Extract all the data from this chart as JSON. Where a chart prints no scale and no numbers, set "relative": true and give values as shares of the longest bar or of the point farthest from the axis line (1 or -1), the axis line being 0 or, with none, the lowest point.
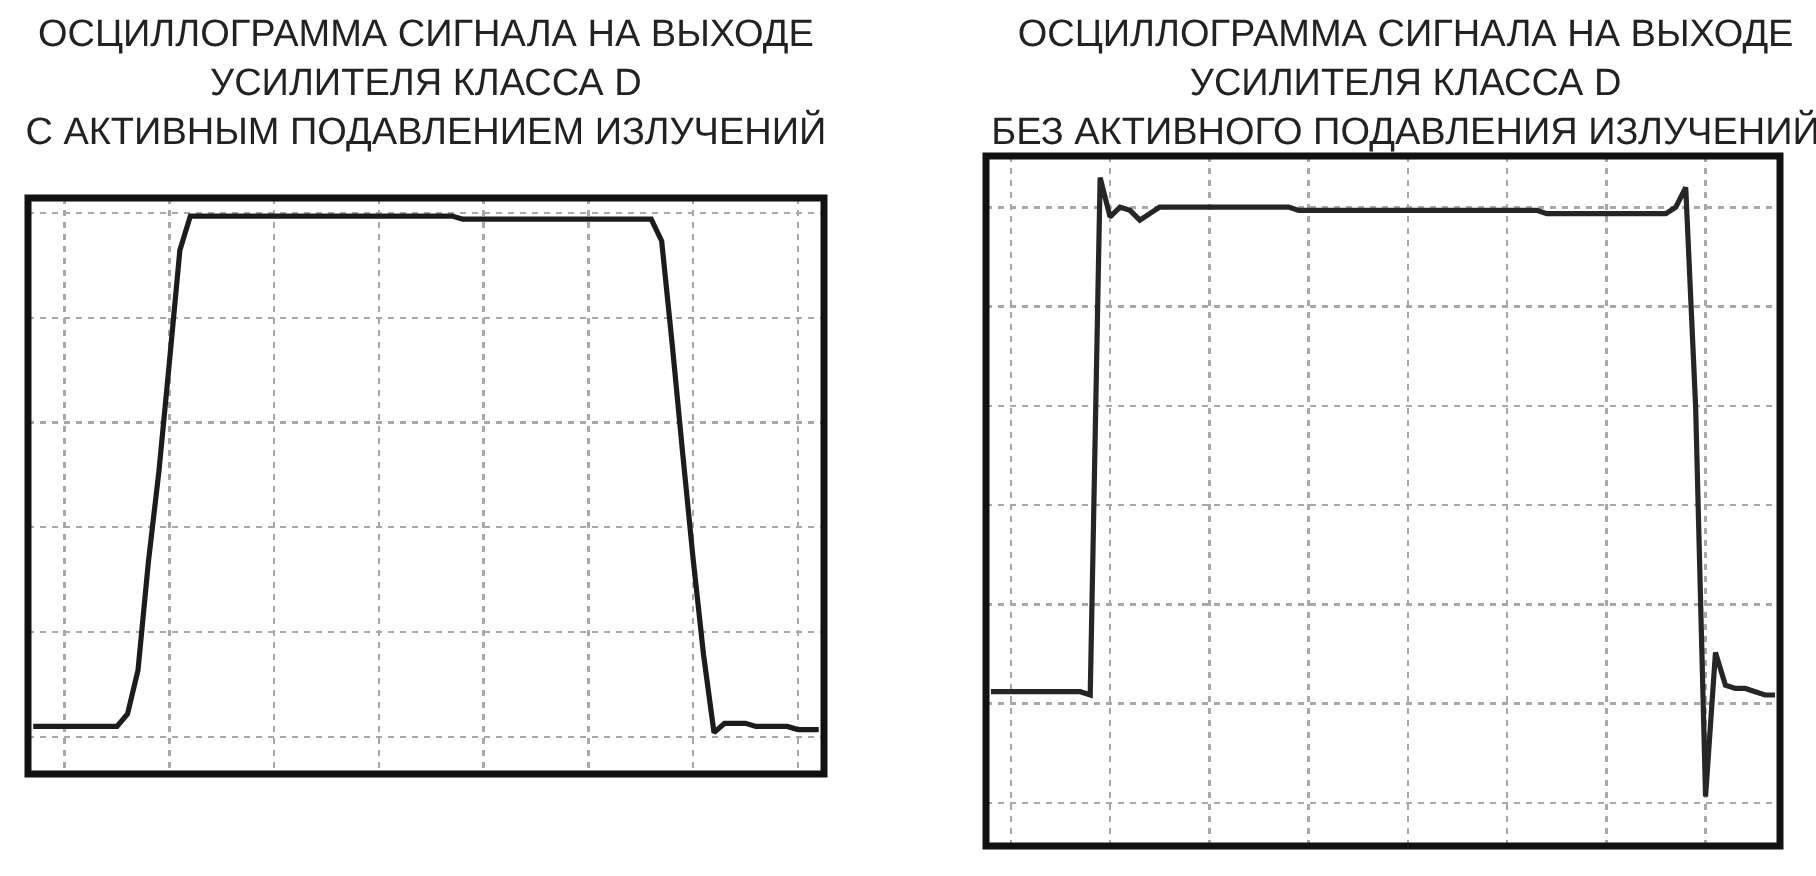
{
  "chart_data": [
    {
      "type": "line",
      "title": "ОСЦИЛЛОГРАММА СИГНАЛА НА ВЫХОДЕ\nУСИЛИТЕЛЯ КЛАССА D\nС АКТИВНЫМ ПОДАВЛЕНИЕМ ИЗЛУЧЕНИЙ",
      "categories": [
        null,
        null,
        null,
        null,
        null,
        null,
        null,
        null,
        null,
        null,
        null,
        null,
        null,
        null,
        null,
        null,
        null,
        null,
        null,
        null,
        null,
        null,
        null,
        null,
        null,
        null,
        null,
        null,
        null,
        null,
        null,
        null,
        null,
        null,
        null,
        null,
        null,
        null,
        null,
        null,
        null,
        null,
        null,
        null,
        null,
        null,
        null,
        null,
        null,
        null,
        null,
        null,
        null,
        null,
        null,
        null,
        null,
        null,
        null,
        null,
        null,
        null,
        null,
        null,
        null,
        null,
        null,
        null,
        null,
        null,
        null,
        null,
        null,
        null,
        null,
        null
      ],
      "values": [
        -0.64,
        -0.64,
        -0.64,
        -0.64,
        -0.64,
        -0.64,
        -0.64,
        -0.64,
        -0.64,
        -0.6,
        -0.46,
        -0.11,
        0.18,
        0.53,
        0.89,
        1.0,
        1.0,
        1.0,
        1.0,
        1.0,
        1.0,
        1.0,
        1.0,
        1.0,
        1.0,
        1.0,
        1.0,
        1.0,
        1.0,
        1.0,
        1.0,
        1.0,
        1.0,
        1.0,
        1.0,
        1.0,
        1.0,
        1.0,
        1.0,
        1.0,
        1.0,
        0.99,
        0.99,
        0.99,
        0.99,
        0.99,
        0.99,
        0.99,
        0.99,
        0.99,
        0.99,
        0.99,
        0.99,
        0.99,
        0.99,
        0.99,
        0.99,
        0.99,
        0.99,
        0.99,
        0.92,
        0.59,
        0.24,
        -0.1,
        -0.41,
        -0.66,
        -0.63,
        -0.63,
        -0.63,
        -0.64,
        -0.64,
        -0.64,
        -0.64,
        -0.65,
        -0.65,
        -0.65
      ],
      "color": "#1c1c1c",
      "relative": true,
      "grid": true
    },
    {
      "type": "line",
      "title": "ОСЦИЛЛОГРАММА СИГНАЛА НА ВЫХОДЕ\nУСИЛИТЕЛЯ КЛАССА D\nБЕЗ АКТИВНОГО ПОДАВЛЕНИЯ ИЗЛУЧЕНИЙ",
      "categories": [
        null,
        null,
        null,
        null,
        null,
        null,
        null,
        null,
        null,
        null,
        null,
        null,
        null,
        null,
        null,
        null,
        null,
        null,
        null,
        null,
        null,
        null,
        null,
        null,
        null,
        null,
        null,
        null,
        null,
        null,
        null,
        null,
        null,
        null,
        null,
        null,
        null,
        null,
        null,
        null,
        null,
        null,
        null,
        null,
        null,
        null,
        null,
        null,
        null,
        null,
        null,
        null,
        null,
        null,
        null,
        null,
        null,
        null,
        null,
        null,
        null,
        null,
        null,
        null,
        null,
        null,
        null,
        null,
        null,
        null,
        null,
        null,
        null,
        null,
        null,
        null,
        null,
        null,
        null,
        null
      ],
      "values": [
        -0.57,
        -0.57,
        -0.57,
        -0.57,
        -0.57,
        -0.57,
        -0.57,
        -0.57,
        -0.57,
        -0.57,
        -0.58,
        1.0,
        0.88,
        0.91,
        0.9,
        0.87,
        0.89,
        0.91,
        0.91,
        0.91,
        0.91,
        0.91,
        0.91,
        0.91,
        0.91,
        0.91,
        0.91,
        0.91,
        0.91,
        0.91,
        0.91,
        0.9,
        0.9,
        0.9,
        0.9,
        0.9,
        0.9,
        0.9,
        0.9,
        0.9,
        0.9,
        0.9,
        0.9,
        0.9,
        0.9,
        0.9,
        0.9,
        0.9,
        0.9,
        0.9,
        0.9,
        0.9,
        0.9,
        0.9,
        0.9,
        0.9,
        0.89,
        0.89,
        0.89,
        0.89,
        0.89,
        0.89,
        0.89,
        0.89,
        0.89,
        0.89,
        0.89,
        0.89,
        0.89,
        0.91,
        0.97,
        0.3,
        -0.89,
        -0.45,
        -0.55,
        -0.56,
        -0.56,
        -0.57,
        -0.58,
        -0.58
      ],
      "color": "#262626",
      "relative": true,
      "grid": true
    }
  ]
}
